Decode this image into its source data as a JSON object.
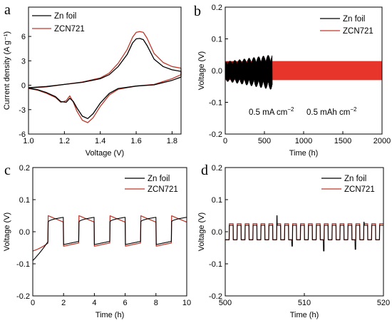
{
  "colors": {
    "zn_foil": "#000000",
    "zcn721": "#c0392b",
    "zcn721_fill": "#e8352b"
  },
  "chart_data": [
    {
      "panel": "a",
      "type": "line",
      "xlabel": "Voltage (V)",
      "ylabel": "Current density (A g⁻¹)",
      "xlim": [
        1.0,
        1.85
      ],
      "ylim": [
        -6,
        9.6
      ],
      "xticks": [
        "1.0",
        "1.2",
        "1.4",
        "1.6",
        "1.8"
      ],
      "yticks": [
        "-6",
        "-3",
        "0",
        "3",
        "6"
      ],
      "legend_position": "top-left",
      "series": [
        {
          "name": "Zn foil",
          "color": "#000000",
          "forward": [
            [
              1.0,
              -0.3
            ],
            [
              1.1,
              -0.15
            ],
            [
              1.2,
              0.1
            ],
            [
              1.3,
              0.35
            ],
            [
              1.4,
              0.8
            ],
            [
              1.45,
              1.3
            ],
            [
              1.5,
              2.3
            ],
            [
              1.55,
              3.8
            ],
            [
              1.58,
              5.2
            ],
            [
              1.6,
              5.7
            ],
            [
              1.62,
              5.75
            ],
            [
              1.64,
              5.6
            ],
            [
              1.66,
              4.9
            ],
            [
              1.7,
              3.2
            ],
            [
              1.75,
              2.3
            ],
            [
              1.8,
              1.9
            ],
            [
              1.85,
              1.7
            ]
          ],
          "reverse": [
            [
              1.85,
              1.0
            ],
            [
              1.8,
              0.6
            ],
            [
              1.7,
              0.05
            ],
            [
              1.6,
              -0.1
            ],
            [
              1.5,
              -0.4
            ],
            [
              1.45,
              -1.0
            ],
            [
              1.4,
              -2.2
            ],
            [
              1.36,
              -3.5
            ],
            [
              1.33,
              -4.1
            ],
            [
              1.3,
              -3.8
            ],
            [
              1.27,
              -2.8
            ],
            [
              1.25,
              -2.0
            ],
            [
              1.23,
              -1.6
            ],
            [
              1.21,
              -2.1
            ],
            [
              1.18,
              -2.0
            ],
            [
              1.15,
              -1.4
            ],
            [
              1.1,
              -0.9
            ],
            [
              1.05,
              -0.55
            ],
            [
              1.0,
              -0.35
            ]
          ]
        },
        {
          "name": "ZCN721",
          "color": "#c0392b",
          "forward": [
            [
              1.0,
              -0.35
            ],
            [
              1.1,
              -0.2
            ],
            [
              1.2,
              0.1
            ],
            [
              1.3,
              0.4
            ],
            [
              1.4,
              0.9
            ],
            [
              1.45,
              1.5
            ],
            [
              1.5,
              2.7
            ],
            [
              1.55,
              4.4
            ],
            [
              1.58,
              5.9
            ],
            [
              1.6,
              6.5
            ],
            [
              1.62,
              6.6
            ],
            [
              1.64,
              6.5
            ],
            [
              1.66,
              5.8
            ],
            [
              1.7,
              3.9
            ],
            [
              1.75,
              2.8
            ],
            [
              1.8,
              2.3
            ],
            [
              1.85,
              2.1
            ]
          ],
          "reverse": [
            [
              1.85,
              1.3
            ],
            [
              1.8,
              0.8
            ],
            [
              1.7,
              0.1
            ],
            [
              1.6,
              -0.1
            ],
            [
              1.5,
              -0.5
            ],
            [
              1.45,
              -1.2
            ],
            [
              1.4,
              -2.6
            ],
            [
              1.36,
              -4.0
            ],
            [
              1.33,
              -4.6
            ],
            [
              1.3,
              -4.3
            ],
            [
              1.27,
              -3.2
            ],
            [
              1.25,
              -2.1
            ],
            [
              1.23,
              -1.3
            ],
            [
              1.21,
              -1.9
            ],
            [
              1.18,
              -2.1
            ],
            [
              1.15,
              -1.5
            ],
            [
              1.1,
              -1.0
            ],
            [
              1.05,
              -0.6
            ],
            [
              1.0,
              -0.4
            ]
          ]
        }
      ]
    },
    {
      "panel": "b",
      "type": "line",
      "xlabel": "Time (h)",
      "ylabel": "Voltage (V)",
      "xlim": [
        0,
        2000
      ],
      "ylim": [
        -0.2,
        0.2
      ],
      "xticks": [
        "0",
        "500",
        "1000",
        "1500",
        "2000"
      ],
      "yticks": [
        "-0.2",
        "-0.1",
        "0.0",
        "0.1",
        "0.2"
      ],
      "legend_position": "top-right",
      "annotations": [
        "0.5 mA cm⁻²",
        "0.5 mAh cm⁻²"
      ],
      "series": [
        {
          "name": "Zn foil",
          "color": "#000000",
          "duration_h": 600,
          "amplitude_V": [
            -0.06,
            0.05
          ]
        },
        {
          "name": "ZCN721",
          "color": "#e8352b",
          "duration_h": 2000,
          "amplitude_V": [
            -0.03,
            0.03
          ]
        }
      ]
    },
    {
      "panel": "c",
      "type": "line",
      "xlabel": "Time (h)",
      "ylabel": "Voltage (V)",
      "xlim": [
        0,
        10
      ],
      "ylim": [
        -0.2,
        0.2
      ],
      "xticks": [
        "0",
        "2",
        "4",
        "6",
        "8",
        "10"
      ],
      "yticks": [
        "-0.2",
        "-0.1",
        "0.0",
        "0.1",
        "0.2"
      ],
      "legend_position": "top-right",
      "series": [
        {
          "name": "Zn foil",
          "color": "#000000",
          "cycle_period_h": 2,
          "charge_V": [
            0.03,
            0.045
          ],
          "discharge_V": [
            -0.04,
            -0.03
          ],
          "initial_V": -0.09
        },
        {
          "name": "ZCN721",
          "color": "#c0392b",
          "cycle_period_h": 2,
          "charge_V": [
            0.05,
            0.03
          ],
          "discharge_V": [
            -0.045,
            -0.035
          ],
          "initial_V": -0.06
        }
      ]
    },
    {
      "panel": "d",
      "type": "line",
      "xlabel": "Time (h)",
      "ylabel": "Voltage (V)",
      "xlim": [
        500,
        520
      ],
      "ylim": [
        -0.2,
        0.2
      ],
      "xticks": [
        "500",
        "510",
        "520"
      ],
      "yticks": [
        "-0.2",
        "-0.1",
        "0.0",
        "0.1",
        "0.2"
      ],
      "legend_position": "top-right",
      "series": [
        {
          "name": "Zn foil",
          "color": "#000000",
          "cycle_period_h": 1,
          "charge_V": 0.02,
          "discharge_V": -0.025,
          "spikes_V": [
            0.05,
            -0.06
          ]
        },
        {
          "name": "ZCN721",
          "color": "#c0392b",
          "cycle_period_h": 1,
          "charge_V": 0.025,
          "discharge_V": -0.025
        }
      ]
    }
  ],
  "panels": {
    "a": {
      "label": "a",
      "legend": [
        "Zn foil",
        "ZCN721"
      ]
    },
    "b": {
      "label": "b",
      "legend": [
        "Zn foil",
        "ZCN721"
      ],
      "annot1": "0.5 mA cm",
      "annot2": "0.5 mAh cm",
      "annot_sup": "−2"
    },
    "c": {
      "label": "c",
      "legend": [
        "Zn foil",
        "ZCN721"
      ]
    },
    "d": {
      "label": "d",
      "legend": [
        "Zn foil",
        "ZCN721"
      ]
    }
  }
}
